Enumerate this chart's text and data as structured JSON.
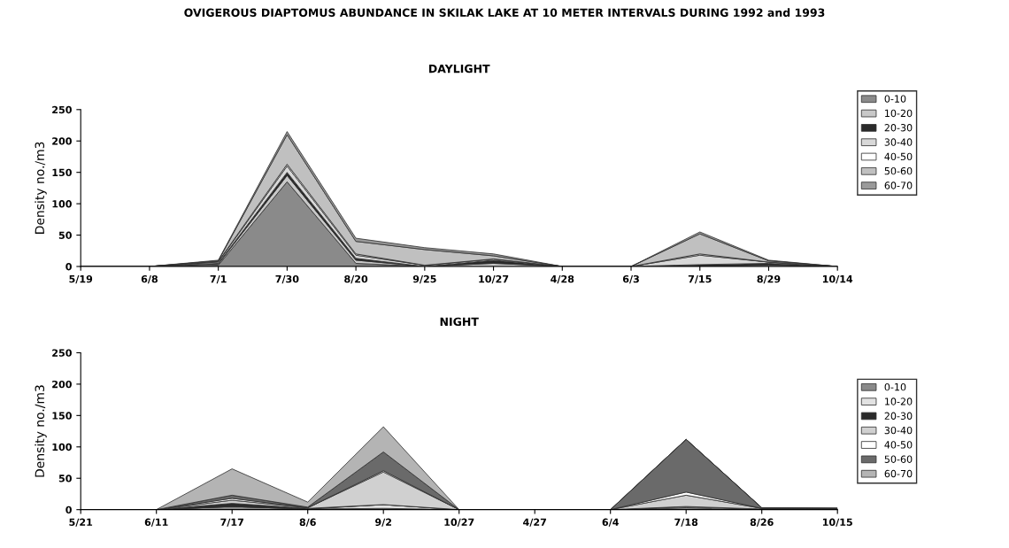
{
  "chart_data": [
    {
      "type": "area",
      "stacked": true,
      "title": "OVIGEROUS DIAPTOMUS ABUNDANCE IN SKILAK LAKE AT 10 METER INTERVALS DURING 1992 and 1993",
      "subtitle": "DAYLIGHT",
      "ylabel": "Density no./m3",
      "categories": [
        "5/19",
        "6/8",
        "7/1",
        "7/30",
        "8/20",
        "9/25",
        "10/27",
        "4/28",
        "6/3",
        "7/15",
        "8/29",
        "10/14"
      ],
      "ylim": [
        0,
        250
      ],
      "yticks": [
        0,
        50,
        100,
        150,
        200,
        250
      ],
      "grid": false,
      "legend": "top right",
      "series": [
        {
          "name": "0-10",
          "color": "#8a8a8a",
          "values": [
            0,
            0,
            2,
            135,
            5,
            0,
            0,
            0,
            0,
            0,
            0,
            0
          ]
        },
        {
          "name": "10-20",
          "color": "#c8c8c8",
          "values": [
            0,
            0,
            2,
            10,
            5,
            0,
            5,
            0,
            0,
            0,
            2,
            0
          ]
        },
        {
          "name": "20-30",
          "color": "#2a2a2a",
          "values": [
            0,
            0,
            1,
            5,
            3,
            0,
            5,
            0,
            0,
            3,
            3,
            0
          ]
        },
        {
          "name": "30-40",
          "color": "#d8d8d8",
          "values": [
            0,
            0,
            2,
            10,
            5,
            2,
            2,
            0,
            0,
            15,
            2,
            0
          ]
        },
        {
          "name": "40-50",
          "color": "#ffffff",
          "values": [
            0,
            0,
            1,
            3,
            2,
            0,
            0,
            0,
            0,
            2,
            0,
            0
          ]
        },
        {
          "name": "50-60",
          "color": "#c0c0c0",
          "values": [
            0,
            0,
            1,
            47,
            20,
            25,
            5,
            0,
            0,
            32,
            2,
            0
          ]
        },
        {
          "name": "60-70",
          "color": "#9a9a9a",
          "values": [
            0,
            0,
            1,
            5,
            5,
            3,
            3,
            0,
            0,
            3,
            1,
            0
          ]
        }
      ]
    },
    {
      "type": "area",
      "stacked": true,
      "title": "NIGHT",
      "ylabel": "Density no./m3",
      "categories": [
        "5/21",
        "6/11",
        "7/17",
        "8/6",
        "9/2",
        "10/27",
        "4/27",
        "6/4",
        "7/18",
        "8/26",
        "10/15"
      ],
      "ylim": [
        0,
        250
      ],
      "yticks": [
        0,
        50,
        100,
        150,
        200,
        250
      ],
      "grid": false,
      "legend": "right",
      "series": [
        {
          "name": "0-10",
          "color": "#8a8a8a",
          "values": [
            0,
            0,
            5,
            1,
            2,
            0,
            0,
            0,
            3,
            1,
            0
          ]
        },
        {
          "name": "10-20",
          "color": "#e2e2e2",
          "values": [
            0,
            0,
            0,
            0,
            6,
            0,
            0,
            0,
            2,
            0,
            1
          ]
        },
        {
          "name": "20-30",
          "color": "#2a2a2a",
          "values": [
            0,
            0,
            5,
            1,
            0,
            0,
            0,
            0,
            0,
            0,
            0
          ]
        },
        {
          "name": "30-40",
          "color": "#d0d0d0",
          "values": [
            0,
            0,
            5,
            1,
            52,
            0,
            0,
            0,
            18,
            1,
            1
          ]
        },
        {
          "name": "40-50",
          "color": "#ffffff",
          "values": [
            0,
            0,
            3,
            0,
            2,
            0,
            0,
            0,
            5,
            0,
            0
          ]
        },
        {
          "name": "50-60",
          "color": "#6a6a6a",
          "values": [
            0,
            0,
            5,
            1,
            30,
            0,
            0,
            0,
            84,
            1,
            0
          ]
        },
        {
          "name": "60-70",
          "color": "#b4b4b4",
          "values": [
            0,
            0,
            42,
            8,
            40,
            0,
            0,
            0,
            0,
            0,
            0
          ]
        }
      ]
    }
  ]
}
